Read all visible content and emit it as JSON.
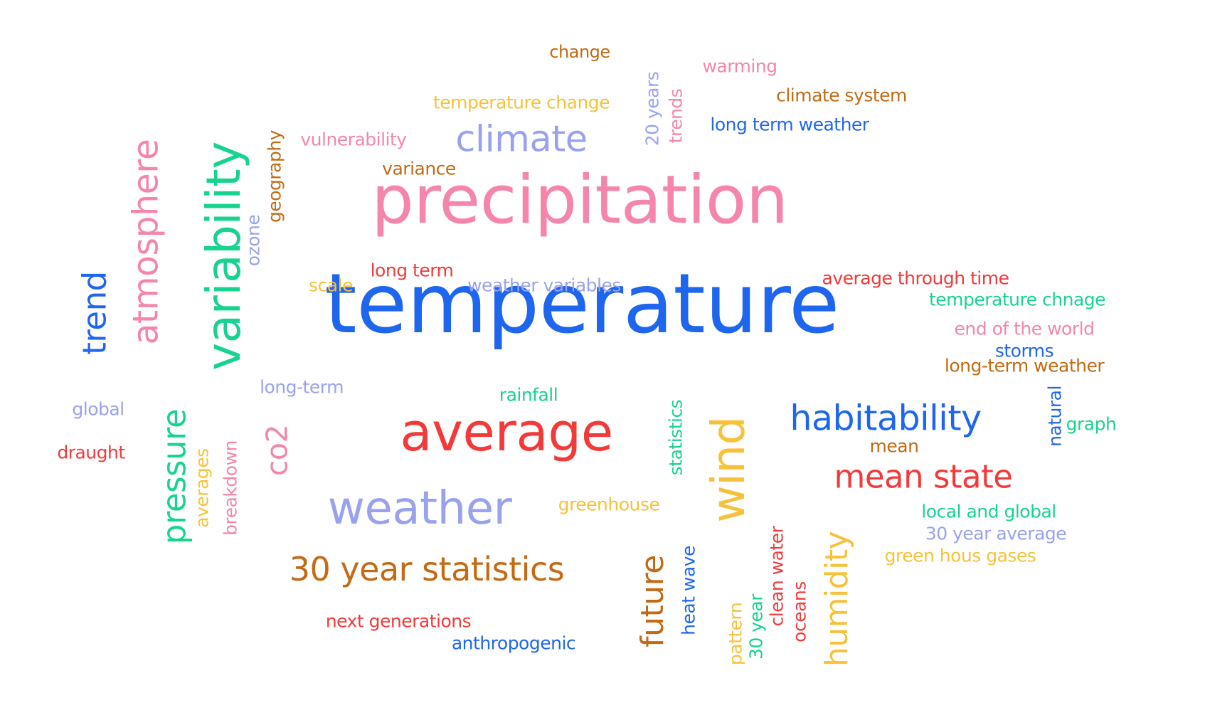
{
  "palette": {
    "blue": "#1f66ee",
    "pink": "#f585ad",
    "green": "#18d38f",
    "red": "#f23a3a",
    "lavender": "#9aa2ee",
    "orange": "#c46a14",
    "yellow": "#f7c23a"
  },
  "words": [
    {
      "text": "temperature",
      "color": "blue"
    },
    {
      "text": "precipitation",
      "color": "pink"
    },
    {
      "text": "variability",
      "color": "green"
    },
    {
      "text": "average",
      "color": "red"
    },
    {
      "text": "weather",
      "color": "lavender"
    },
    {
      "text": "atmosphere",
      "color": "pink"
    },
    {
      "text": "climate",
      "color": "lavender"
    },
    {
      "text": "wind",
      "color": "yellow"
    },
    {
      "text": "trend",
      "color": "blue"
    },
    {
      "text": "pressure",
      "color": "green"
    },
    {
      "text": "habitability",
      "color": "blue"
    },
    {
      "text": "mean state",
      "color": "red"
    },
    {
      "text": "30 year statistics",
      "color": "orange"
    },
    {
      "text": "humidity",
      "color": "yellow"
    },
    {
      "text": "future",
      "color": "orange"
    },
    {
      "text": "co2",
      "color": "pink"
    },
    {
      "text": "change",
      "color": "orange"
    },
    {
      "text": "warming",
      "color": "pink"
    },
    {
      "text": "climate system",
      "color": "orange"
    },
    {
      "text": "temperature change",
      "color": "yellow"
    },
    {
      "text": "long term weather",
      "color": "blue"
    },
    {
      "text": "20 years",
      "color": "lavender"
    },
    {
      "text": "trends",
      "color": "pink"
    },
    {
      "text": "vulnerability",
      "color": "pink"
    },
    {
      "text": "variance",
      "color": "orange"
    },
    {
      "text": "geography",
      "color": "orange"
    },
    {
      "text": "ozone",
      "color": "lavender"
    },
    {
      "text": "scale",
      "color": "yellow"
    },
    {
      "text": "long term",
      "color": "red"
    },
    {
      "text": "weather variables",
      "color": "lavender"
    },
    {
      "text": "average through time",
      "color": "red"
    },
    {
      "text": "temperature chnage",
      "color": "green"
    },
    {
      "text": "end of the world",
      "color": "pink"
    },
    {
      "text": "storms",
      "color": "blue"
    },
    {
      "text": "long-term weather",
      "color": "orange"
    },
    {
      "text": "long-term",
      "color": "lavender"
    },
    {
      "text": "rainfall",
      "color": "green"
    },
    {
      "text": "global",
      "color": "lavender"
    },
    {
      "text": "draught",
      "color": "red"
    },
    {
      "text": "averages",
      "color": "yellow"
    },
    {
      "text": "breakdown",
      "color": "pink"
    },
    {
      "text": "statistics",
      "color": "green"
    },
    {
      "text": "natural",
      "color": "blue"
    },
    {
      "text": "graph",
      "color": "green"
    },
    {
      "text": "mean",
      "color": "orange"
    },
    {
      "text": "greenhouse",
      "color": "yellow"
    },
    {
      "text": "local and global",
      "color": "green"
    },
    {
      "text": "30 year average",
      "color": "lavender"
    },
    {
      "text": "green hous gases",
      "color": "yellow"
    },
    {
      "text": "heat wave",
      "color": "blue"
    },
    {
      "text": "clean water",
      "color": "red"
    },
    {
      "text": "oceans",
      "color": "red"
    },
    {
      "text": "pattern",
      "color": "yellow"
    },
    {
      "text": "30 year",
      "color": "green"
    },
    {
      "text": "next generations",
      "color": "red"
    },
    {
      "text": "anthropogenic",
      "color": "blue"
    }
  ]
}
